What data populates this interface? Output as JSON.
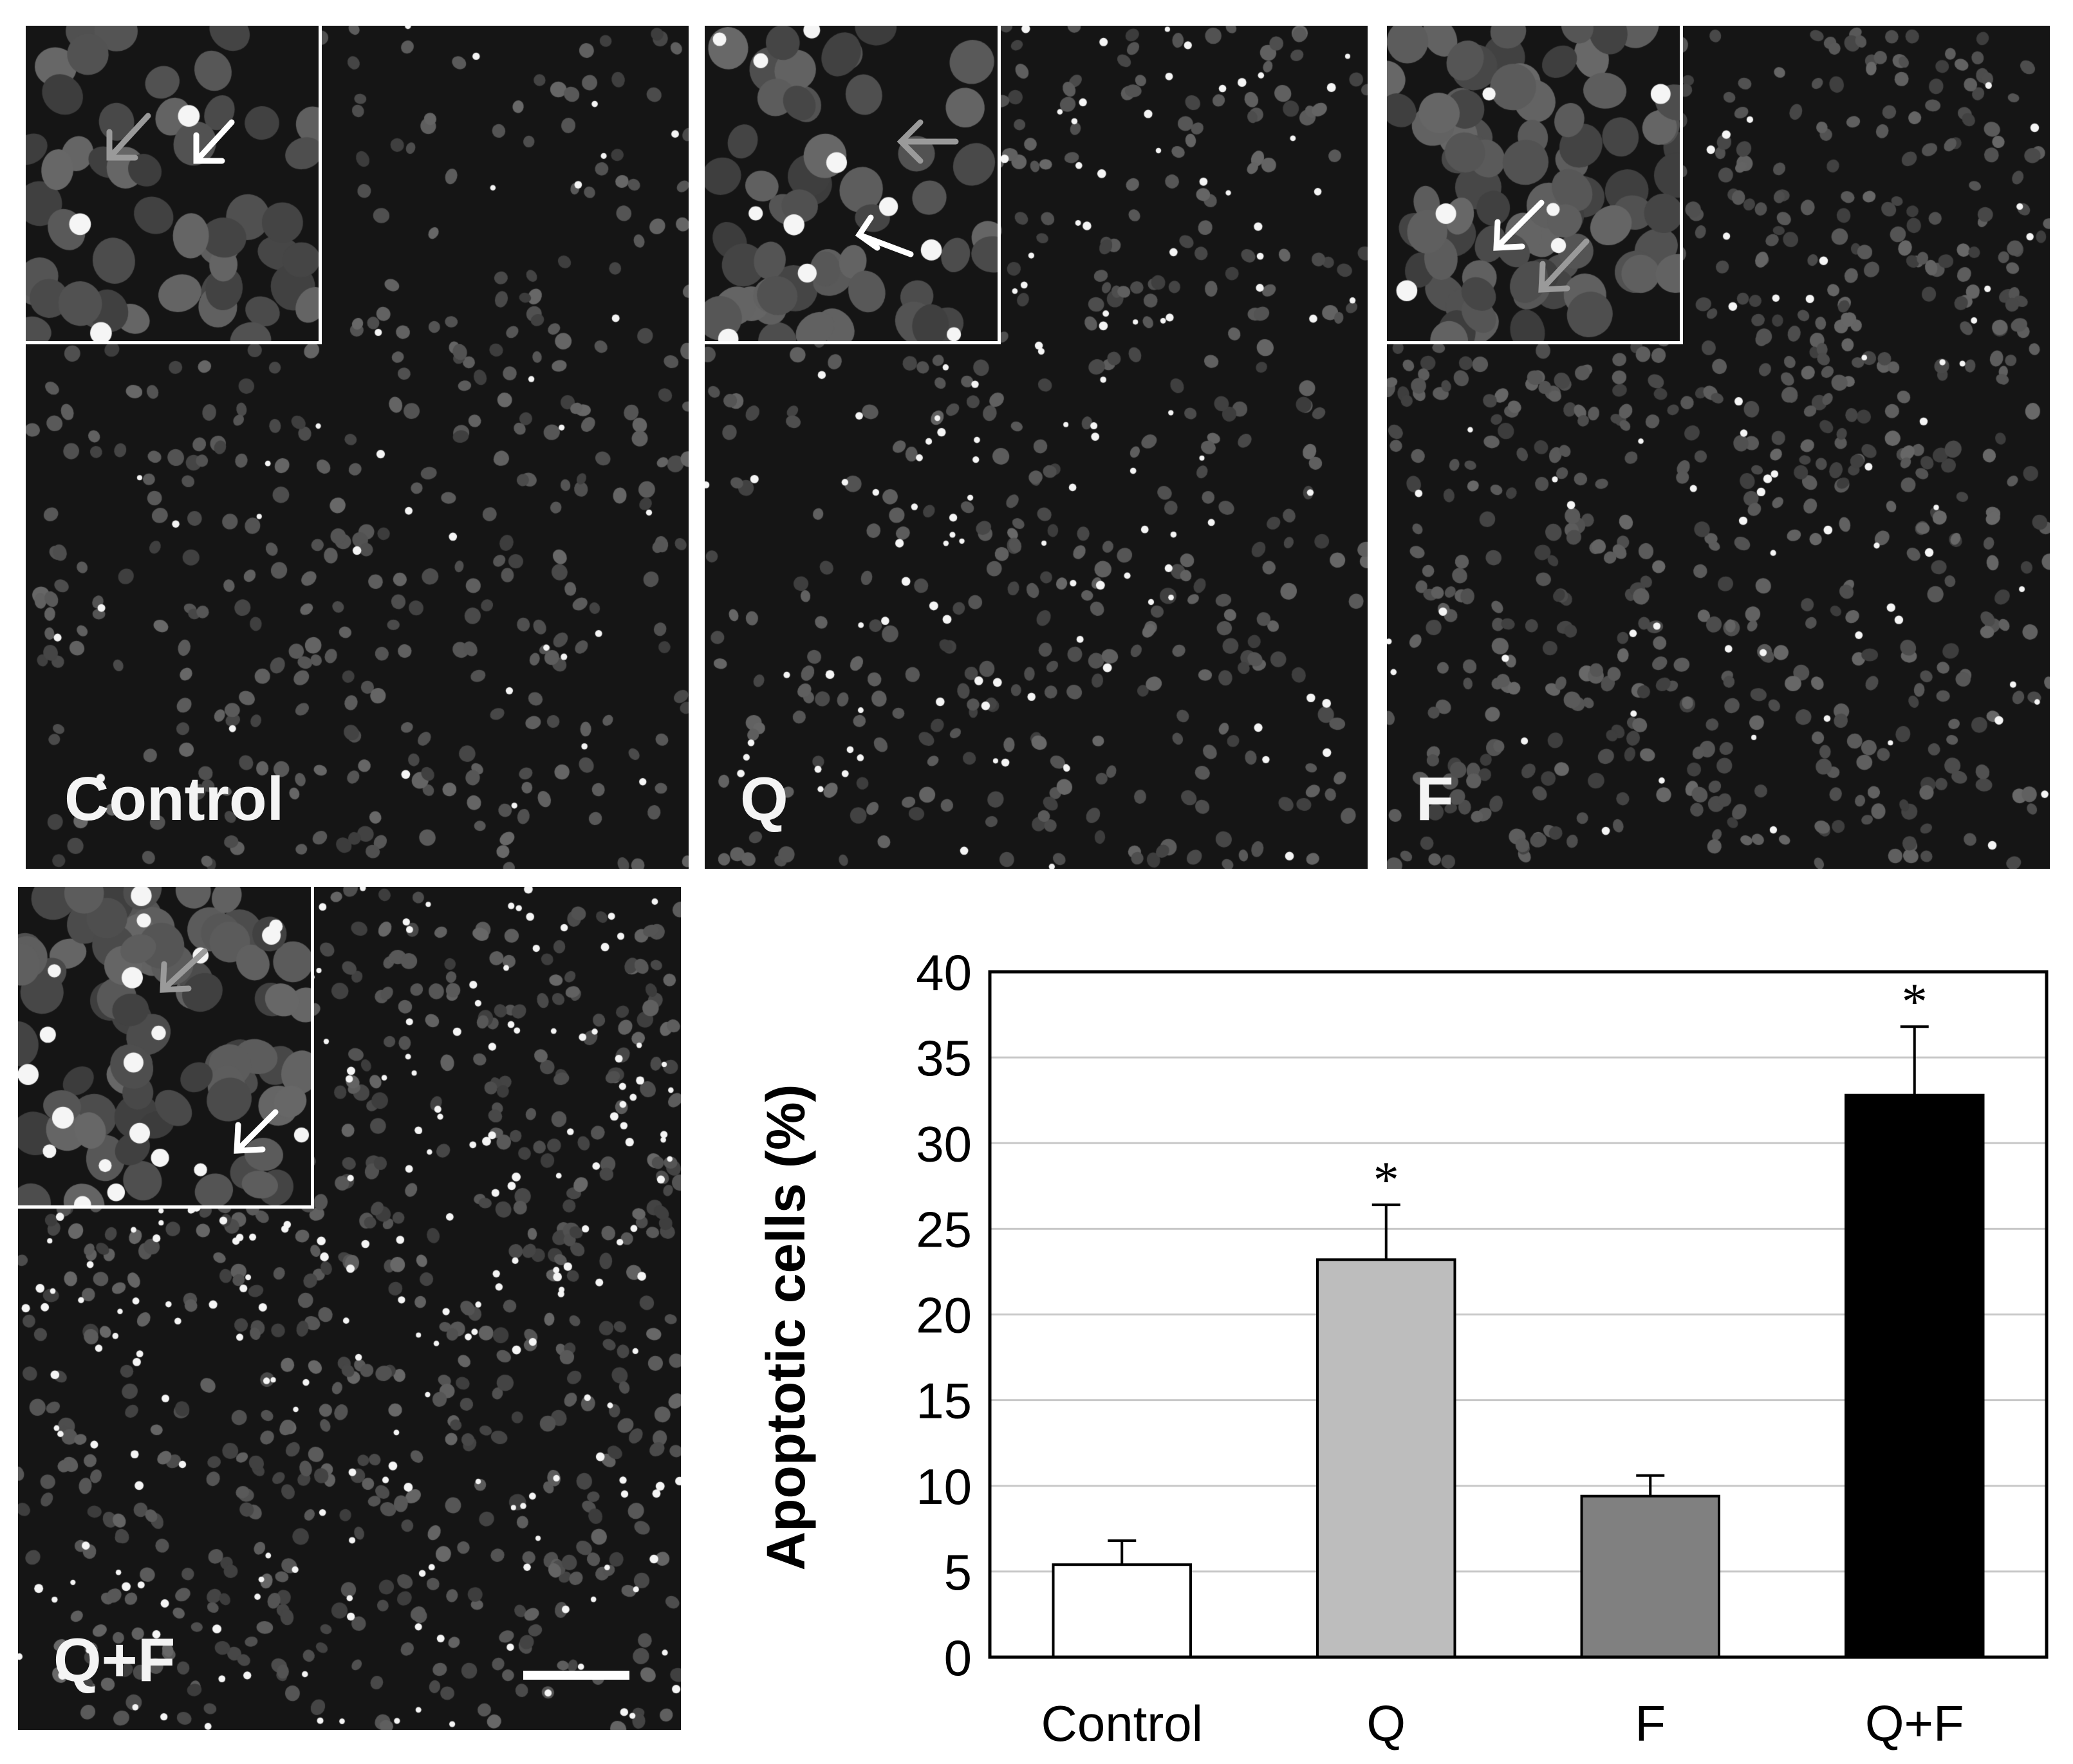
{
  "panels": [
    {
      "label": "Control",
      "dot_density": 420,
      "bright_count": 40,
      "seed": 11
    },
    {
      "label": "Q",
      "dot_density": 430,
      "bright_count": 140,
      "seed": 23
    },
    {
      "label": "F",
      "dot_density": 700,
      "bright_count": 70,
      "seed": 37
    },
    {
      "label": "Q+F",
      "dot_density": 640,
      "bright_count": 260,
      "seed": 53
    }
  ],
  "chart_data": {
    "type": "bar",
    "categories": [
      "Control",
      "Q",
      "F",
      "Q+F"
    ],
    "values": [
      5.4,
      23.2,
      9.4,
      32.8
    ],
    "errors": [
      1.4,
      3.2,
      1.2,
      4.0
    ],
    "significance": [
      "",
      "*",
      "",
      "*"
    ],
    "colors": [
      "#ffffff",
      "#bdbdbd",
      "#808080",
      "#000000"
    ],
    "ylabel": "Apoptotic cells (%)",
    "ylim": [
      0,
      40
    ],
    "yticks": [
      "0",
      "5",
      "10",
      "15",
      "20",
      "25",
      "30",
      "35",
      "40"
    ],
    "grid": true
  }
}
